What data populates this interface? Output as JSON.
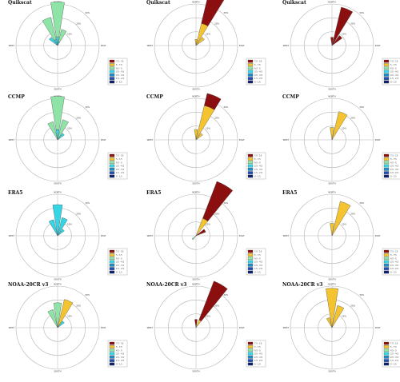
{
  "legend_bins": [
    {
      "label": "7.5 - 10",
      "color": "#8b0f0f"
    },
    {
      "label": "5 - 7.5",
      "color": "#f4c430"
    },
    {
      "label": "4.5 - 5",
      "color": "#8ee4a6"
    },
    {
      "label": "3.5 - 4.5",
      "color": "#34d6e6"
    },
    {
      "label": "2.5 - 3.5",
      "color": "#1a8ec9"
    },
    {
      "label": "1.5 - 2.5",
      "color": "#1e4fb4"
    },
    {
      "label": "0 - 1.5",
      "color": "#101f6e"
    }
  ],
  "cardinals": {
    "n": "NORTH",
    "s": "SOUTH",
    "e": "EAST",
    "w": "WEST"
  },
  "ring_labels": [
    "10%",
    "20%",
    "30%"
  ],
  "chart_data": [
    {
      "type": "wind-rose",
      "title": "Quikscat",
      "ring_pct": [
        10,
        20,
        30
      ],
      "petals": [
        {
          "dir": 0,
          "bins": {
            "3.5 - 4.5": 0.2,
            "4.5 - 5": 0.85
          }
        },
        {
          "dir": -22.5,
          "bins": {
            "3.5 - 4.5": 0.15,
            "4.5 - 5": 0.55
          }
        },
        {
          "dir": 22.5,
          "bins": {
            "3.5 - 4.5": 0.1,
            "4.5 - 5": 0.3
          }
        },
        {
          "dir": -45,
          "bins": {
            "3.5 - 4.5": 0.25
          }
        }
      ]
    },
    {
      "type": "wind-rose",
      "title": "Quikscat",
      "ring_pct": [
        10,
        20,
        30
      ],
      "petals": [
        {
          "dir": 22.5,
          "bins": {
            "5 - 7.5": 0.55,
            "7.5 - 10": 0.9
          }
        },
        {
          "dir": 45,
          "bins": {
            "5 - 7.5": 0.25
          }
        },
        {
          "dir": 0,
          "bins": {
            "5 - 7.5": 0.15
          }
        }
      ]
    },
    {
      "type": "wind-rose",
      "title": "Quikscat",
      "ring_pct": [
        10,
        20,
        30
      ],
      "petals": [
        {
          "dir": 22.5,
          "bins": {
            "7.5 - 10": 0.95
          }
        },
        {
          "dir": 45,
          "bins": {
            "7.5 - 10": 0.3
          }
        },
        {
          "dir": 0,
          "bins": {
            "7.5 - 10": 0.2
          }
        }
      ]
    },
    {
      "type": "wind-rose",
      "title": "CCMP",
      "ring_pct": [
        10,
        20,
        30
      ],
      "petals": [
        {
          "dir": 0,
          "bins": {
            "3.5 - 4.5": 0.25,
            "4.5 - 5": 0.8
          }
        },
        {
          "dir": 22.5,
          "bins": {
            "4.5 - 5": 0.5
          }
        },
        {
          "dir": -22.5,
          "bins": {
            "4.5 - 5": 0.45
          }
        },
        {
          "dir": 45,
          "bins": {
            "3.5 - 4.5": 0.2
          }
        }
      ]
    },
    {
      "type": "wind-rose",
      "title": "CCMP",
      "ring_pct": [
        10,
        20,
        30
      ],
      "petals": [
        {
          "dir": 22.5,
          "bins": {
            "5 - 7.5": 0.85,
            "7.5 - 10": 0.3
          }
        },
        {
          "dir": 45,
          "bins": {
            "5 - 7.5": 0.2
          }
        },
        {
          "dir": 0,
          "bins": {
            "5 - 7.5": 0.25
          }
        }
      ]
    },
    {
      "type": "wind-rose",
      "title": "CCMP",
      "ring_pct": [
        10,
        20,
        30
      ],
      "petals": [
        {
          "dir": 22.5,
          "bins": {
            "5 - 7.5": 0.7
          }
        },
        {
          "dir": 0,
          "bins": {
            "5 - 7.5": 0.3
          }
        }
      ]
    },
    {
      "type": "wind-rose",
      "title": "ERA5",
      "ring_pct": [
        10,
        20,
        30
      ],
      "petals": [
        {
          "dir": 0,
          "bins": {
            "3.5 - 4.5": 0.75
          }
        },
        {
          "dir": 22.5,
          "bins": {
            "3.5 - 4.5": 0.45
          }
        },
        {
          "dir": -22.5,
          "bins": {
            "3.5 - 4.5": 0.4
          }
        },
        {
          "dir": 45,
          "bins": {
            "3.5 - 4.5": 0.2
          }
        }
      ]
    },
    {
      "type": "wind-rose",
      "title": "ERA5",
      "ring_pct": [
        10,
        20,
        30
      ],
      "petals": [
        {
          "dir": 30,
          "bins": {
            "5 - 7.5": 0.45,
            "7.5 - 10": 0.95
          }
        },
        {
          "dir": 60,
          "bins": {
            "7.5 - 10": 0.25
          }
        },
        {
          "dir": 225,
          "bins": {
            "4.5 - 5": 0.12
          }
        }
      ]
    },
    {
      "type": "wind-rose",
      "title": "ERA5",
      "ring_pct": [
        10,
        20,
        30
      ],
      "petals": [
        {
          "dir": 22.5,
          "bins": {
            "5 - 7.5": 0.85
          }
        },
        {
          "dir": 0,
          "bins": {
            "5 - 7.5": 0.3
          }
        }
      ]
    },
    {
      "type": "wind-rose",
      "title": "NOAA-20CR v3",
      "ring_pct": [
        10,
        20,
        30
      ],
      "petals": [
        {
          "dir": 0,
          "bins": {
            "4.5 - 5": 0.6
          }
        },
        {
          "dir": 22.5,
          "bins": {
            "5 - 7.5": 0.7
          }
        },
        {
          "dir": -22.5,
          "bins": {
            "4.5 - 5": 0.45
          }
        },
        {
          "dir": 45,
          "bins": {
            "3.5 - 4.5": 0.2
          }
        }
      ]
    },
    {
      "type": "wind-rose",
      "title": "NOAA-20CR v3",
      "ring_pct": [
        10,
        20,
        30
      ],
      "petals": [
        {
          "dir": 30,
          "bins": {
            "5 - 7.5": 0.2,
            "7.5 - 10": 1.0
          }
        },
        {
          "dir": 0,
          "bins": {
            "7.5 - 10": 0.2
          }
        }
      ]
    },
    {
      "type": "wind-rose",
      "title": "NOAA-20CR v3",
      "ring_pct": [
        10,
        20,
        30
      ],
      "petals": [
        {
          "dir": 0,
          "bins": {
            "5 - 7.5": 0.95
          }
        },
        {
          "dir": 22.5,
          "bins": {
            "5 - 7.5": 0.55
          }
        },
        {
          "dir": -22.5,
          "bins": {
            "5 - 7.5": 0.25
          }
        }
      ]
    }
  ]
}
